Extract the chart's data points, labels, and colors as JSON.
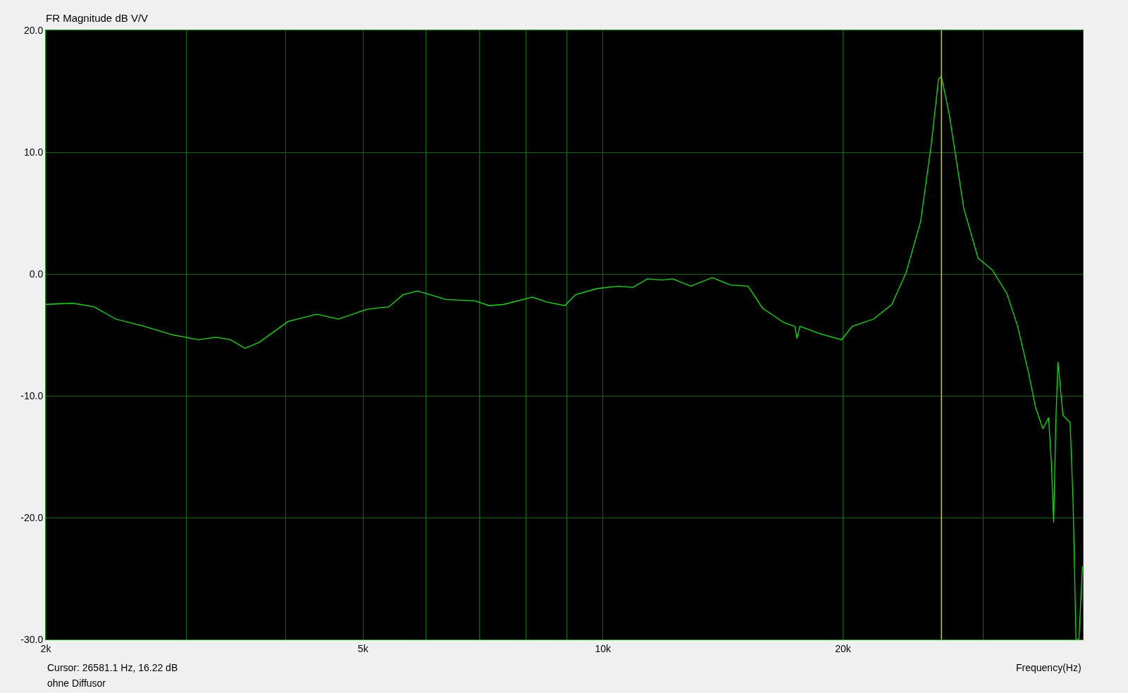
{
  "chart_data": {
    "type": "line",
    "title": "FR Magnitude dB V/V",
    "xlabel": "Frequency(Hz)",
    "log": "x",
    "grid": true,
    "marker": "none",
    "line_style": "solid",
    "xlim": [
      2000,
      40000
    ],
    "xticks": [
      {
        "value": 2000,
        "label": "2k"
      },
      {
        "value": 3000,
        "label": null
      },
      {
        "value": 4000,
        "label": null
      },
      {
        "value": 5000,
        "label": "5k"
      },
      {
        "value": 6000,
        "label": null
      },
      {
        "value": 7000,
        "label": null
      },
      {
        "value": 8000,
        "label": null
      },
      {
        "value": 9000,
        "label": null
      },
      {
        "value": 10000,
        "label": "10k"
      },
      {
        "value": 20000,
        "label": "20k"
      },
      {
        "value": 30000,
        "label": null
      }
    ],
    "ylim": [
      -30,
      20
    ],
    "yticks": [
      {
        "value": -30,
        "label": "-30.0"
      },
      {
        "value": -20,
        "label": "-20.0"
      },
      {
        "value": -10,
        "label": "-10.0"
      },
      {
        "value": 0,
        "label": "0.0"
      },
      {
        "value": 10,
        "label": "10.0"
      },
      {
        "value": 20,
        "label": "20.0"
      }
    ],
    "x": [
      2000,
      2160,
      2299,
      2447,
      2658,
      2887,
      3107,
      3271,
      3410,
      3555,
      3707,
      4027,
      4375,
      4656,
      5058,
      5385,
      5613,
      5851,
      6358,
      6905,
      7199,
      7505,
      8154,
      8500,
      8954,
      9237,
      9830,
      10462,
      10905,
      11367,
      11856,
      12230,
      12883,
      13710,
      14441,
      15206,
      15852,
      16870,
      17406,
      17514,
      17660,
      18720,
      19920,
      20540,
      21860,
      23030,
      24000,
      25030,
      25820,
      26360,
      26580,
      27190,
      28350,
      29550,
      30810,
      32110,
      33130,
      34180,
      34900,
      35630,
      36230,
      36530,
      36760,
      36990,
      37220,
      37760,
      38550,
      38880,
      39210,
      39540,
      39950
    ],
    "series": [
      {
        "color": "#00e600",
        "values": [
          -2.5,
          -2.4,
          -2.7,
          -3.7,
          -4.3,
          -5.0,
          -5.4,
          -5.2,
          -5.4,
          -6.1,
          -5.6,
          -3.9,
          -3.3,
          -3.7,
          -2.9,
          -2.7,
          -1.7,
          -1.4,
          -2.1,
          -2.2,
          -2.6,
          -2.5,
          -1.9,
          -2.3,
          -2.6,
          -1.7,
          -1.2,
          -1.0,
          -1.1,
          -0.4,
          -0.5,
          -0.4,
          -1.0,
          -0.3,
          -0.9,
          -1.0,
          -2.8,
          -4.0,
          -4.3,
          -5.3,
          -4.3,
          -4.9,
          -5.4,
          -4.3,
          -3.7,
          -2.5,
          0.1,
          4.3,
          10.7,
          16.0,
          16.2,
          13.1,
          5.4,
          1.3,
          0.3,
          -1.6,
          -4.3,
          -8.1,
          -11.0,
          -12.7,
          -11.8,
          -15.7,
          -20.4,
          -12.2,
          -7.2,
          -11.6,
          -12.2,
          -18.7,
          -30,
          -30,
          -24.0
        ]
      }
    ],
    "ref_lines": [
      {
        "axis": "x",
        "value": 26581.1,
        "color": "#c8c800"
      }
    ],
    "annotations": [
      "Cursor: 26581.1 Hz, 16.22 dB",
      "ohne Diffusor"
    ]
  }
}
